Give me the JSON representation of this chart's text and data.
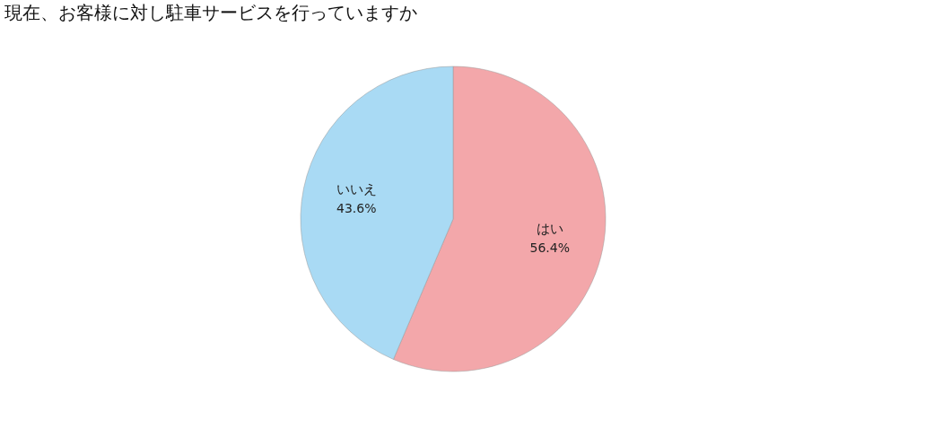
{
  "chart_data": {
    "type": "pie",
    "title": "現在、お客様に対し駐車サービスを行っていますか",
    "categories": [
      "はい",
      "いいえ"
    ],
    "values": [
      56.4,
      43.6
    ],
    "colors": [
      "#f3a7aa",
      "#a9daf4"
    ],
    "value_labels": [
      "56.4%",
      "43.6%"
    ],
    "legend": false
  }
}
